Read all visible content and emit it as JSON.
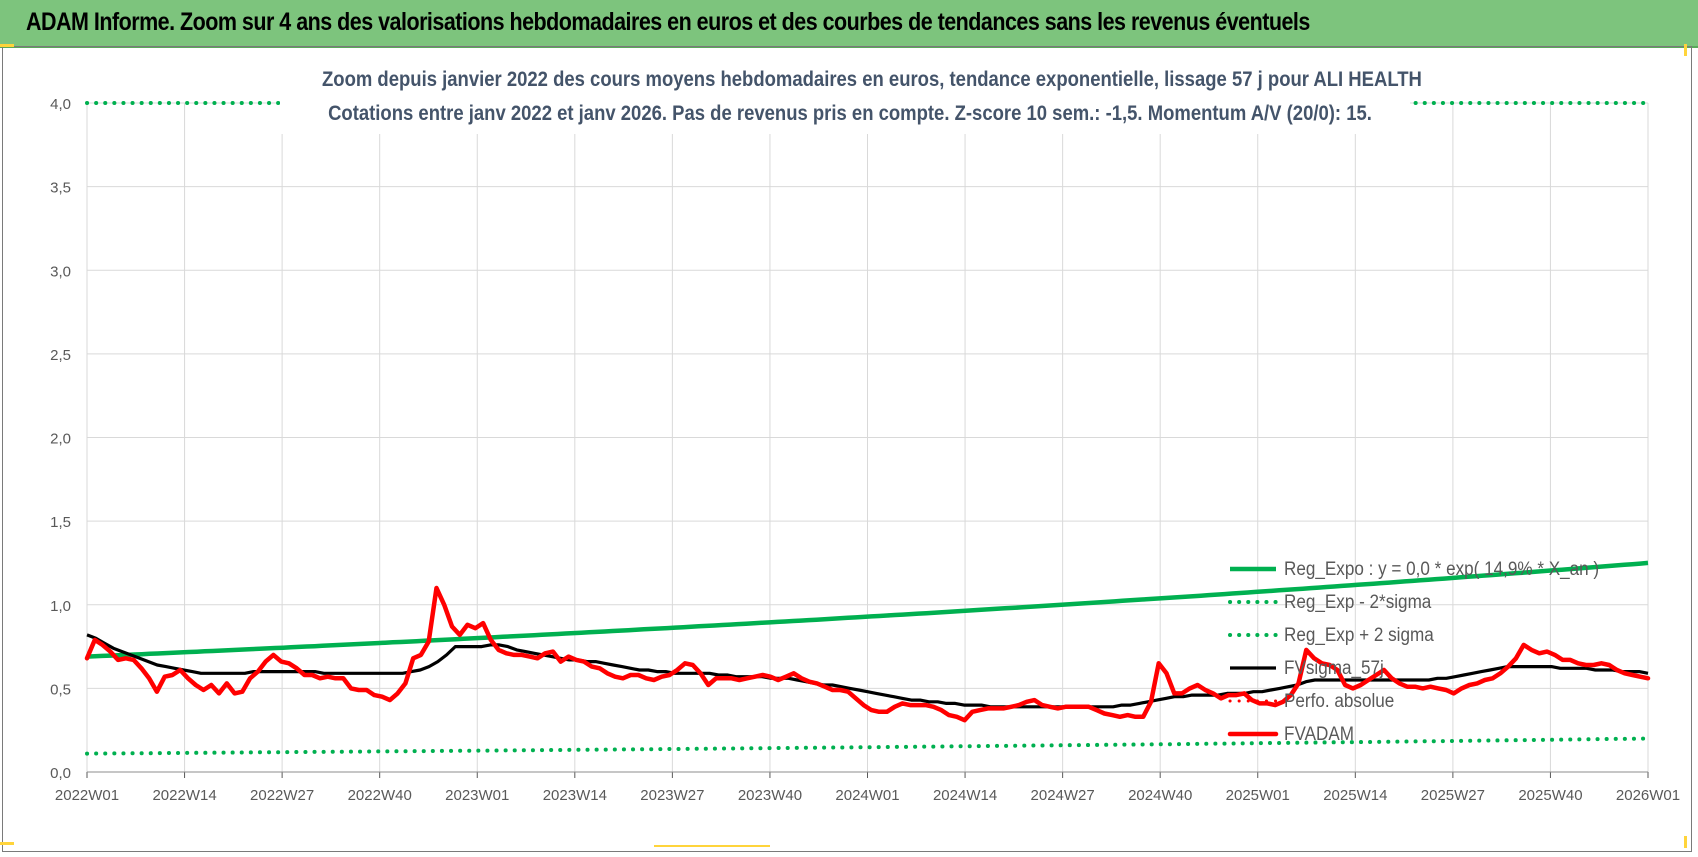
{
  "banner": {
    "title": "ADAM Informe. Zoom sur 4 ans des valorisations hebdomadaires en euros et des courbes de tendances sans les revenus éventuels"
  },
  "colors": {
    "banner_bg": "#7dc47d",
    "title_text": "#44546a",
    "reg_expo": "#00b050",
    "fv_sigma": "#000000",
    "fvadam": "#ff0000"
  },
  "chart_data": {
    "type": "line",
    "title_line1": "Zoom depuis janvier 2022 des cours moyens hebdomadaires en euros, tendance exponentielle, lissage 57 j pour ALI HEALTH",
    "title_line2": "Cotations entre janv 2022 et janv 2026. Pas de revenus pris en compte. Z-score 10 sem.: -1,5. Momentum A/V (20/0): 15.",
    "xlabel": "",
    "ylabel": "",
    "ylim": [
      0,
      4
    ],
    "y_ticks": [
      "0,0",
      "0,5",
      "1,0",
      "1,5",
      "2,0",
      "2,5",
      "3,0",
      "3,5",
      "4,0"
    ],
    "x_ticks": [
      "2022W01",
      "2022W14",
      "2022W27",
      "2022W40",
      "2023W01",
      "2023W14",
      "2023W27",
      "2023W40",
      "2024W01",
      "2024W14",
      "2024W27",
      "2024W40",
      "2025W01",
      "2025W14",
      "2025W27",
      "2025W40",
      "2026W01"
    ],
    "grid": true,
    "legend_position": "bottom-right",
    "legend": [
      "Reg_Expo : y = 0,0 * exp( 14,9% * X_an )",
      "Reg_Exp - 2*sigma",
      "Reg_Exp + 2 sigma",
      "FVsigma_57j",
      "Perfo. absolue",
      "FVADAM"
    ],
    "series": [
      {
        "name": "Reg_Expo : y = 0,0 * exp( 14,9% * X_an )",
        "style": "solid",
        "color": "#00b050",
        "start": 0.69,
        "end": 1.25
      },
      {
        "name": "Reg_Exp - 2*sigma",
        "style": "dotted",
        "color": "#00b050",
        "start": 0.11,
        "end": 0.2
      },
      {
        "name": "Reg_Exp + 2 sigma",
        "style": "dotted",
        "color": "#00b050",
        "start": 4.0,
        "end": 4.0
      },
      {
        "name": "FVsigma_57j",
        "style": "solid",
        "color": "#000000",
        "values": [
          0.82,
          0.8,
          0.77,
          0.74,
          0.72,
          0.7,
          0.68,
          0.66,
          0.64,
          0.63,
          0.62,
          0.61,
          0.6,
          0.59,
          0.59,
          0.59,
          0.59,
          0.59,
          0.59,
          0.6,
          0.6,
          0.6,
          0.6,
          0.6,
          0.6,
          0.6,
          0.6,
          0.59,
          0.59,
          0.59,
          0.59,
          0.59,
          0.59,
          0.59,
          0.59,
          0.59,
          0.59,
          0.6,
          0.61,
          0.63,
          0.66,
          0.7,
          0.75,
          0.75,
          0.75,
          0.75,
          0.76,
          0.76,
          0.75,
          0.73,
          0.72,
          0.71,
          0.7,
          0.69,
          0.68,
          0.67,
          0.67,
          0.66,
          0.66,
          0.65,
          0.64,
          0.63,
          0.62,
          0.61,
          0.61,
          0.6,
          0.6,
          0.59,
          0.59,
          0.59,
          0.59,
          0.59,
          0.58,
          0.58,
          0.57,
          0.57,
          0.57,
          0.57,
          0.56,
          0.56,
          0.56,
          0.55,
          0.54,
          0.53,
          0.52,
          0.52,
          0.51,
          0.5,
          0.49,
          0.48,
          0.47,
          0.46,
          0.45,
          0.44,
          0.43,
          0.43,
          0.42,
          0.42,
          0.41,
          0.41,
          0.4,
          0.4,
          0.4,
          0.39,
          0.39,
          0.39,
          0.39,
          0.39,
          0.39,
          0.39,
          0.39,
          0.39,
          0.39,
          0.39,
          0.39,
          0.39,
          0.39,
          0.39,
          0.4,
          0.4,
          0.41,
          0.42,
          0.43,
          0.44,
          0.45,
          0.45,
          0.46,
          0.46,
          0.46,
          0.46,
          0.47,
          0.47,
          0.47,
          0.48,
          0.48,
          0.49,
          0.5,
          0.51,
          0.52,
          0.54,
          0.55,
          0.55,
          0.55,
          0.55,
          0.55,
          0.55,
          0.55,
          0.55,
          0.55,
          0.55,
          0.55,
          0.55,
          0.55,
          0.55,
          0.56,
          0.56,
          0.57,
          0.58,
          0.59,
          0.6,
          0.61,
          0.62,
          0.63,
          0.63,
          0.63,
          0.63,
          0.63,
          0.63,
          0.62,
          0.62,
          0.62,
          0.62,
          0.61,
          0.61,
          0.61,
          0.6,
          0.6,
          0.6,
          0.59
        ]
      },
      {
        "name": "Perfo. absolue",
        "style": "dotted",
        "color": "#ff0000",
        "values": []
      },
      {
        "name": "FVADAM",
        "style": "solid",
        "color": "#ff0000",
        "values": [
          0.68,
          0.79,
          0.76,
          0.72,
          0.67,
          0.68,
          0.67,
          0.62,
          0.56,
          0.48,
          0.57,
          0.58,
          0.61,
          0.56,
          0.52,
          0.49,
          0.52,
          0.47,
          0.53,
          0.47,
          0.48,
          0.56,
          0.6,
          0.66,
          0.7,
          0.66,
          0.65,
          0.62,
          0.58,
          0.58,
          0.56,
          0.57,
          0.56,
          0.56,
          0.5,
          0.49,
          0.49,
          0.46,
          0.45,
          0.43,
          0.47,
          0.53,
          0.68,
          0.7,
          0.78,
          1.1,
          1.0,
          0.87,
          0.82,
          0.88,
          0.86,
          0.89,
          0.79,
          0.73,
          0.71,
          0.7,
          0.7,
          0.69,
          0.68,
          0.71,
          0.72,
          0.66,
          0.69,
          0.67,
          0.66,
          0.63,
          0.62,
          0.59,
          0.57,
          0.56,
          0.58,
          0.58,
          0.56,
          0.55,
          0.57,
          0.58,
          0.61,
          0.65,
          0.64,
          0.59,
          0.52,
          0.56,
          0.56,
          0.56,
          0.55,
          0.56,
          0.57,
          0.58,
          0.57,
          0.55,
          0.57,
          0.59,
          0.56,
          0.54,
          0.53,
          0.51,
          0.49,
          0.49,
          0.48,
          0.44,
          0.4,
          0.37,
          0.36,
          0.36,
          0.39,
          0.41,
          0.4,
          0.4,
          0.4,
          0.39,
          0.37,
          0.34,
          0.33,
          0.31,
          0.36,
          0.37,
          0.38,
          0.38,
          0.38,
          0.39,
          0.4,
          0.42,
          0.43,
          0.4,
          0.39,
          0.38,
          0.39,
          0.39,
          0.39,
          0.39,
          0.37,
          0.35,
          0.34,
          0.33,
          0.34,
          0.33,
          0.33,
          0.42,
          0.65,
          0.59,
          0.47,
          0.47,
          0.5,
          0.52,
          0.49,
          0.47,
          0.44,
          0.46,
          0.46,
          0.47,
          0.43,
          0.41,
          0.41,
          0.4,
          0.42,
          0.46,
          0.53,
          0.73,
          0.68,
          0.65,
          0.64,
          0.61,
          0.52,
          0.5,
          0.52,
          0.55,
          0.58,
          0.61,
          0.56,
          0.53,
          0.51,
          0.51,
          0.5,
          0.51,
          0.5,
          0.49,
          0.47,
          0.5,
          0.52,
          0.53,
          0.55,
          0.56,
          0.59,
          0.63,
          0.68,
          0.76,
          0.73,
          0.71,
          0.72,
          0.7,
          0.67,
          0.67,
          0.65,
          0.64,
          0.64,
          0.65,
          0.64,
          0.61,
          0.59,
          0.58,
          0.57,
          0.56
        ]
      }
    ]
  }
}
